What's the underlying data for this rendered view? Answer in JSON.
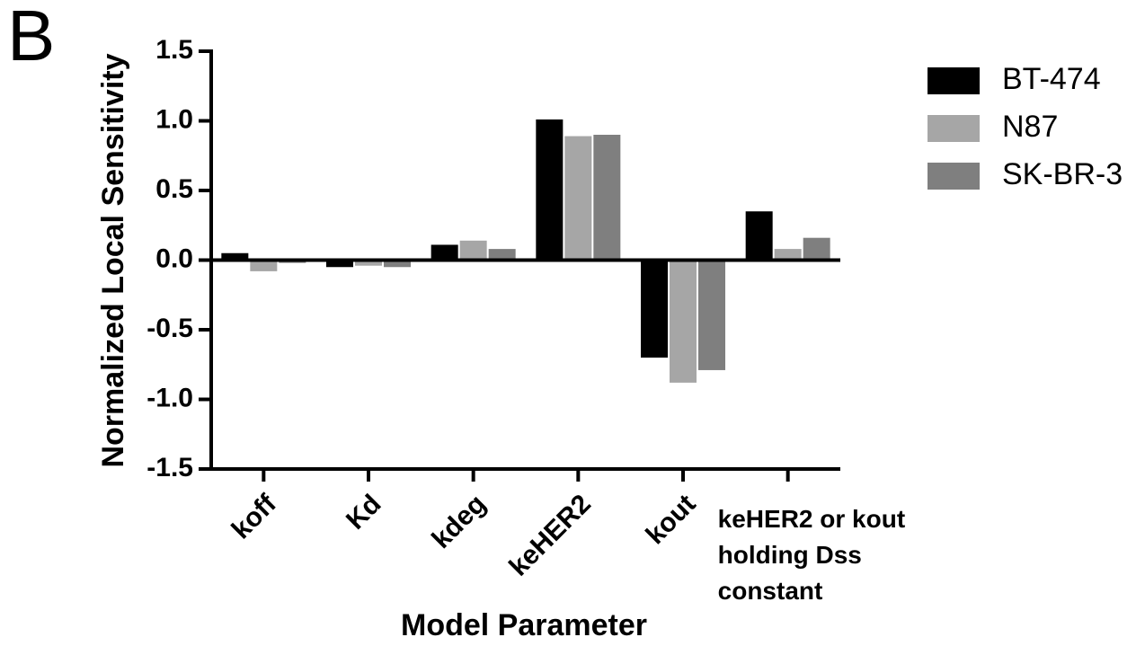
{
  "chart_data": {
    "type": "bar",
    "panel_label": "B",
    "ylabel": "Normalized Local Sensitivity",
    "xlabel": "Model Parameter",
    "categories": [
      "koff",
      "Kd",
      "kdeg",
      "keHER2",
      "kout",
      "keHER2 or kout\nholding Dss\nconstant"
    ],
    "series": [
      {
        "name": "BT-474",
        "color": "#000000",
        "values": [
          0.05,
          -0.05,
          0.11,
          1.01,
          -0.7,
          0.35
        ]
      },
      {
        "name": "N87",
        "color": "#a6a6a6",
        "values": [
          -0.08,
          -0.04,
          0.14,
          0.89,
          -0.88,
          0.08
        ]
      },
      {
        "name": "SK-BR-3",
        "color": "#7f7f7f",
        "values": [
          -0.02,
          -0.05,
          0.08,
          0.9,
          -0.79,
          0.16
        ]
      }
    ],
    "ylim": [
      -1.5,
      1.5
    ],
    "yticks": [
      {
        "value": -1.5,
        "label": "-1.5"
      },
      {
        "value": -1,
        "label": "-1.0"
      },
      -0.5,
      {
        "value": 0,
        "label": "0.0"
      },
      0.5,
      {
        "value": 1,
        "label": "1.0"
      },
      1.5
    ],
    "legend": "right"
  }
}
